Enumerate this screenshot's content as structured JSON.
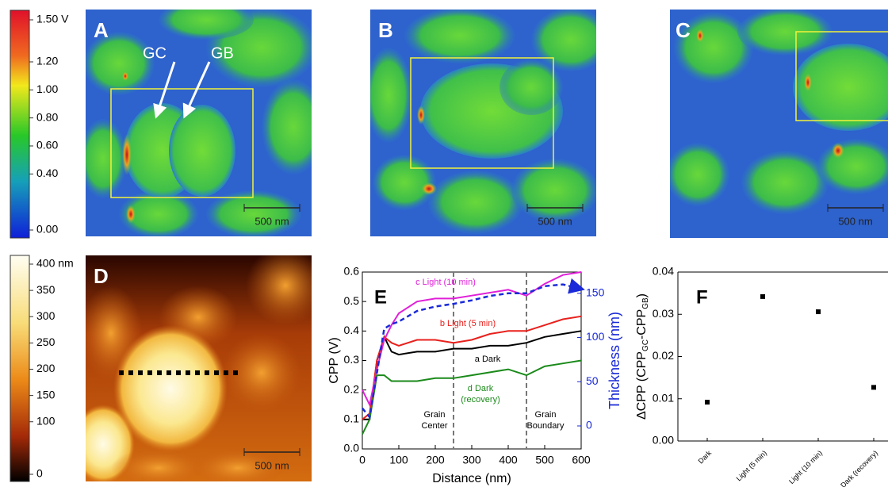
{
  "cpd_colorbar": {
    "ticks": [
      {
        "value": 1.5,
        "label": "1.50 V"
      },
      {
        "value": 1.2,
        "label": "1.20"
      },
      {
        "value": 1.0,
        "label": "1.00"
      },
      {
        "value": 0.8,
        "label": "0.80"
      },
      {
        "value": 0.6,
        "label": "0.60"
      },
      {
        "value": 0.4,
        "label": "0.40"
      },
      {
        "value": 0,
        "label": "0.00"
      }
    ],
    "lim": [
      0,
      1.5
    ]
  },
  "height_colorbar": {
    "ticks": [
      {
        "value": 400,
        "label": "400 nm"
      },
      350,
      300,
      250,
      200,
      150,
      100,
      0
    ],
    "lim": [
      0,
      400
    ]
  },
  "images": [
    {
      "label": "A",
      "scale_bar": "500 nm",
      "annotations": [
        "GC",
        "GB"
      ]
    },
    {
      "label": "B",
      "scale_bar": "500 nm"
    },
    {
      "label": "C",
      "scale_bar": "500 nm"
    },
    {
      "label": "D",
      "scale_bar": "500 nm"
    }
  ],
  "chart_data": [
    {
      "type": "line",
      "panel_label": "E",
      "x_label": "Distance (nm)",
      "y_label": "CPP (V)",
      "y2_label": "Thickness (nm)",
      "x": [
        0,
        20,
        40,
        60,
        80,
        100,
        150,
        200,
        250,
        300,
        350,
        400,
        450,
        500,
        550,
        600
      ],
      "xlim": [
        0,
        600
      ],
      "xticks": [
        0,
        100,
        200,
        300,
        400,
        500,
        600
      ],
      "ylim": [
        0,
        0.6
      ],
      "yticks": [
        {
          "value": 0,
          "label": "0.0"
        },
        0.1,
        0.2,
        0.3,
        0.4,
        0.5,
        0.6
      ],
      "y2lim": [
        -26,
        174
      ],
      "y2ticks": [
        0,
        50,
        100,
        150
      ],
      "series": [
        {
          "name": "a Dark",
          "color": "#000000",
          "values": [
            0.1,
            0.1,
            0.3,
            0.38,
            0.33,
            0.32,
            0.33,
            0.33,
            0.34,
            0.34,
            0.35,
            0.35,
            0.36,
            0.38,
            0.39,
            0.4
          ]
        },
        {
          "name": "b Light (5 min)",
          "color": "#e8201c",
          "values": [
            0.1,
            0.12,
            0.3,
            0.38,
            0.36,
            0.35,
            0.37,
            0.37,
            0.36,
            0.37,
            0.39,
            0.4,
            0.4,
            0.42,
            0.44,
            0.45
          ]
        },
        {
          "name": "c Light (10 min)",
          "color": "#e020d8",
          "values": [
            0.2,
            0.15,
            0.27,
            0.37,
            0.42,
            0.46,
            0.5,
            0.51,
            0.51,
            0.52,
            0.53,
            0.54,
            0.52,
            0.56,
            0.59,
            0.6
          ]
        },
        {
          "name": "d Dark (recovery)",
          "color": "#1a8a1a",
          "values": [
            0.05,
            0.1,
            0.25,
            0.25,
            0.23,
            0.23,
            0.23,
            0.24,
            0.24,
            0.25,
            0.26,
            0.27,
            0.25,
            0.28,
            0.29,
            0.3
          ]
        },
        {
          "color": "#1a2ad8",
          "axis": "y2",
          "dashed": true,
          "values": [
            20,
            10,
            60,
            110,
            115,
            118,
            130,
            135,
            138,
            142,
            147,
            150,
            150,
            158,
            160,
            155
          ]
        }
      ],
      "vlines": [
        {
          "x": 250,
          "label": "Grain Center"
        },
        {
          "x": 450,
          "label": "Grain Boundary"
        }
      ]
    },
    {
      "type": "scatter",
      "panel_label": "F",
      "y_label_parts": [
        "ΔCPP (CPP",
        "GC",
        "-CPP",
        "GB",
        ")"
      ],
      "categories": [
        "Dark",
        "Light (5 min)",
        "Light (10 min)",
        "Dark (recovery)"
      ],
      "values": [
        0.0092,
        0.0342,
        0.0306,
        0.0127
      ],
      "color": "#000000",
      "ylim": [
        0,
        0.04
      ],
      "yticks": [
        {
          "value": 0,
          "label": "0.00"
        },
        {
          "value": 0.01,
          "label": "0.01"
        },
        {
          "value": 0.02,
          "label": "0.02"
        },
        {
          "value": 0.03,
          "label": "0.03"
        },
        {
          "value": 0.04,
          "label": "0.04"
        }
      ]
    }
  ]
}
